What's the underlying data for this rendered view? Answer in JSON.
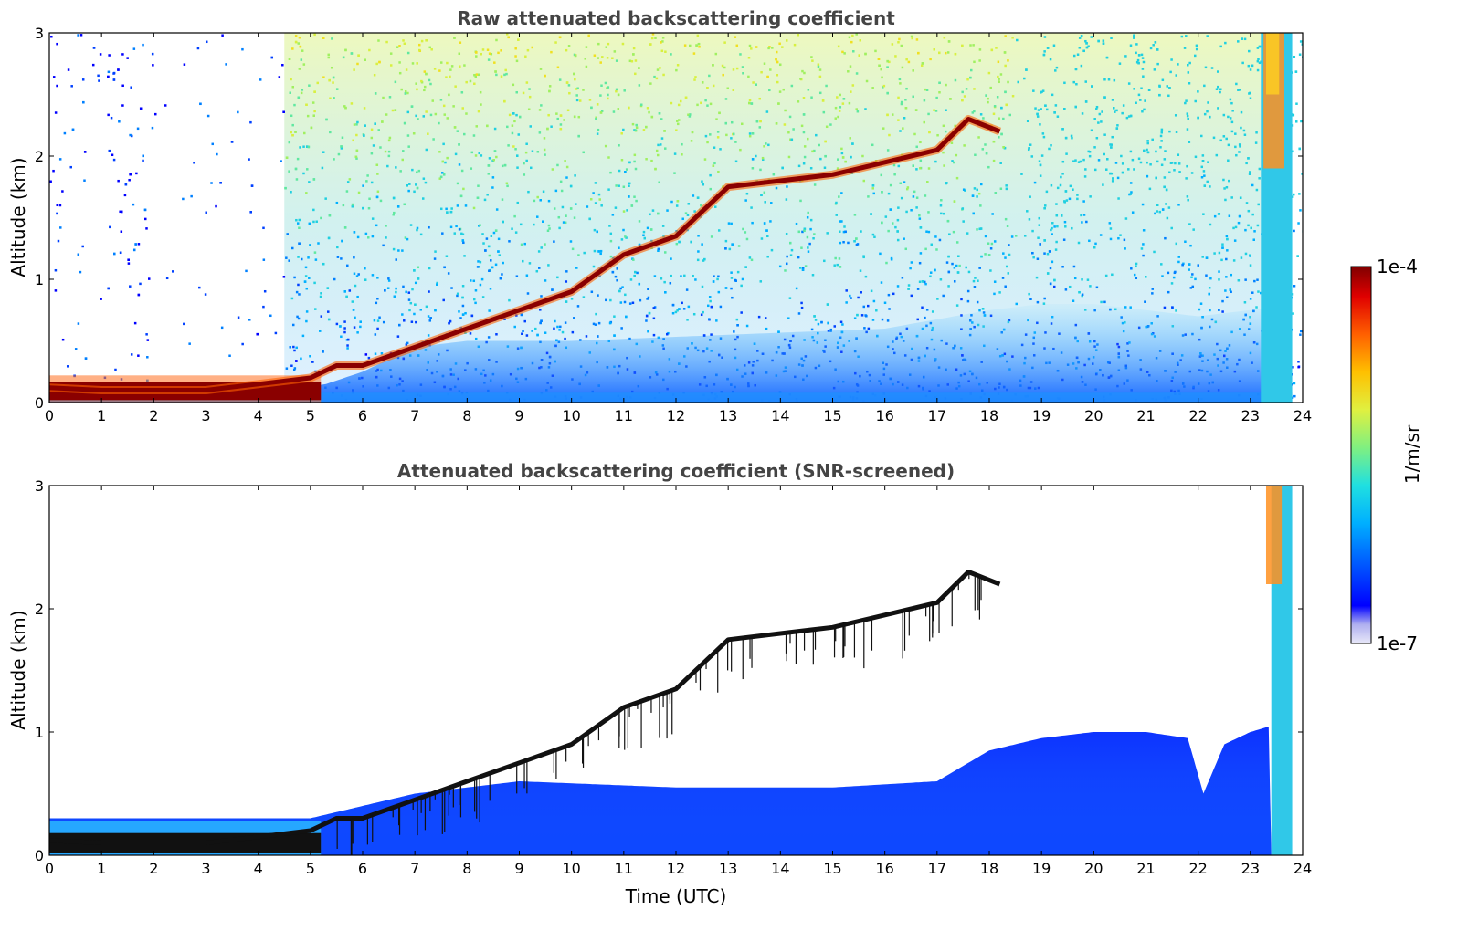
{
  "chart_data": [
    {
      "type": "heatmap",
      "title": "Raw attenuated backscattering coefficient",
      "xlabel": "",
      "ylabel": "Altitude (km)",
      "xlim": [
        0,
        24
      ],
      "ylim": [
        0,
        3
      ],
      "xticks": [
        "0",
        "1",
        "2",
        "3",
        "4",
        "5",
        "6",
        "7",
        "8",
        "9",
        "10",
        "11",
        "12",
        "13",
        "14",
        "15",
        "16",
        "17",
        "18",
        "19",
        "20",
        "21",
        "22",
        "23",
        "24"
      ],
      "yticks": [
        "0",
        "1",
        "2",
        "3"
      ],
      "cloud_layer": {
        "time_utc": [
          0,
          1,
          2,
          3,
          4,
          5,
          5.5,
          6,
          7,
          8,
          9,
          10,
          11,
          12,
          13,
          14,
          15,
          16,
          17,
          17.6,
          18.2
        ],
        "altitude_km": [
          0.12,
          0.1,
          0.1,
          0.1,
          0.15,
          0.2,
          0.3,
          0.3,
          0.45,
          0.6,
          0.75,
          0.9,
          1.2,
          1.35,
          1.75,
          1.8,
          1.85,
          1.95,
          2.05,
          2.3,
          2.2
        ]
      },
      "noise_region_top_km": 3,
      "late_cloud_time_utc": [
        23.2,
        23.8
      ],
      "grid": false
    },
    {
      "type": "heatmap",
      "title": "Attenuated backscattering coefficient (SNR-screened)",
      "xlabel": "Time (UTC)",
      "ylabel": "Altitude (km)",
      "xlim": [
        0,
        24
      ],
      "ylim": [
        0,
        3
      ],
      "xticks": [
        "0",
        "1",
        "2",
        "3",
        "4",
        "5",
        "6",
        "7",
        "8",
        "9",
        "10",
        "11",
        "12",
        "13",
        "14",
        "15",
        "16",
        "17",
        "18",
        "19",
        "20",
        "21",
        "22",
        "23",
        "24"
      ],
      "yticks": [
        "0",
        "1",
        "2",
        "3"
      ],
      "boundary_layer_top": {
        "time_utc": [
          0,
          5,
          7,
          9,
          12,
          15,
          17,
          18,
          19,
          20,
          21,
          21.8,
          22.1,
          22.5,
          23,
          23.4
        ],
        "altitude_km": [
          0.3,
          0.3,
          0.5,
          0.6,
          0.55,
          0.55,
          0.6,
          0.85,
          0.95,
          1.0,
          1.0,
          0.95,
          0.5,
          0.9,
          1.0,
          1.05
        ]
      },
      "grid": false
    }
  ],
  "colorbar": {
    "label": "1/m/sr",
    "max_label": "1e-4",
    "min_label": "1e-7",
    "colors": [
      "#e8e8f8",
      "#b0b0f0",
      "#0000ff",
      "#0050ff",
      "#00b0ff",
      "#20e0e0",
      "#80f080",
      "#e0f040",
      "#ffc000",
      "#ff6000",
      "#e00000",
      "#800000"
    ]
  }
}
